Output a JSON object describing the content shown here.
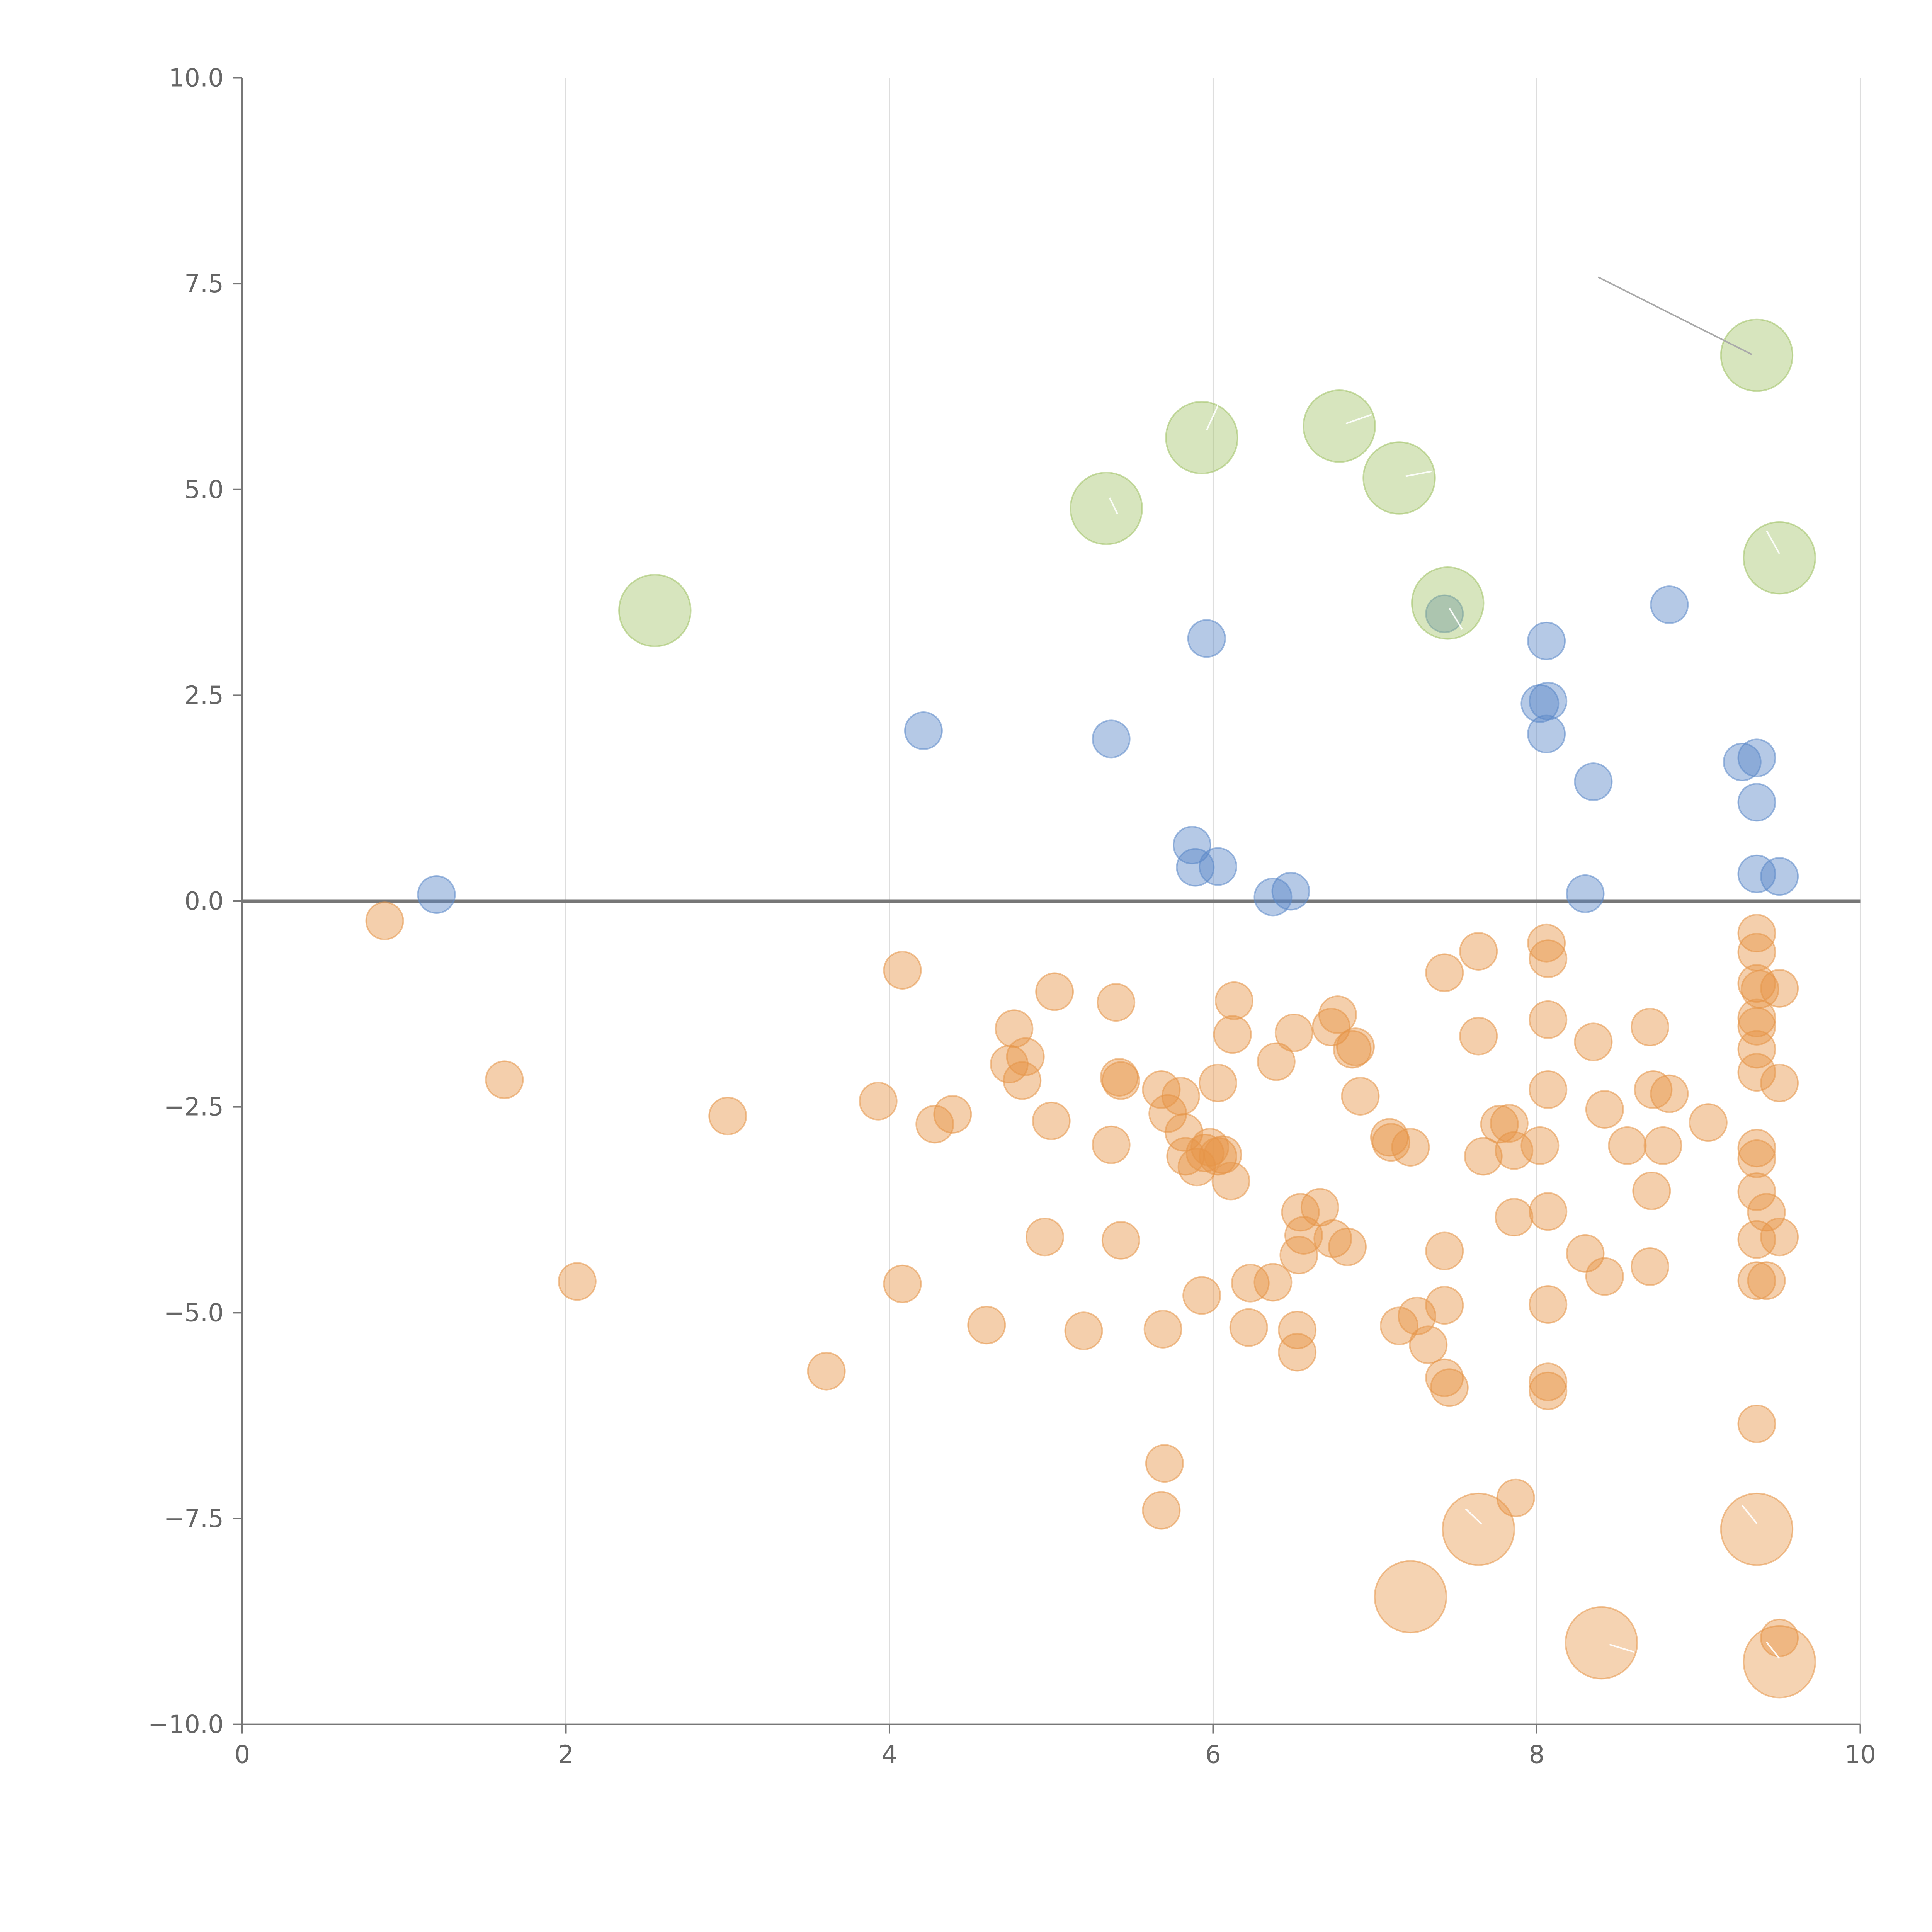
{
  "chart_data": {
    "type": "scatter",
    "title": "",
    "xlabel": "",
    "ylabel": "",
    "xlim": [
      0,
      10
    ],
    "ylim": [
      -10,
      10
    ],
    "x_ticks": [
      "0",
      "2",
      "4",
      "6",
      "8",
      "10"
    ],
    "y_ticks": [
      "10.0",
      "7.5",
      "5.0",
      "2.5",
      "0.0",
      "−2.5",
      "−5.0",
      "−7.5",
      "−10.0"
    ],
    "grid": {
      "vertical": true,
      "horizontal": false
    },
    "zero_line": true,
    "colors": {
      "positive": "#5b88c8",
      "negative": "#e69548",
      "highlight": "#9fc163",
      "highlight_negative": "#e69548",
      "grid": "#dddddd",
      "axis": "#777777",
      "tick_text": "#666666",
      "annotation_line": "#aaaaaa",
      "annotation_line_on_point": "#ffffff"
    },
    "series": [
      {
        "role": "positive",
        "size": "small",
        "points": [
          [
            1.2,
            0.08
          ],
          [
            4.21,
            2.07
          ],
          [
            5.37,
            1.97
          ],
          [
            5.96,
            3.19
          ],
          [
            5.87,
            0.68
          ],
          [
            5.89,
            0.41
          ],
          [
            6.03,
            0.42
          ],
          [
            6.37,
            0.05
          ],
          [
            6.48,
            0.12
          ],
          [
            7.43,
            3.49
          ],
          [
            8.06,
            3.16
          ],
          [
            8.02,
            2.4
          ],
          [
            8.07,
            2.43
          ],
          [
            8.06,
            2.03
          ],
          [
            8.35,
            1.45
          ],
          [
            8.3,
            0.09
          ],
          [
            8.82,
            3.6
          ],
          [
            9.27,
            1.69
          ],
          [
            9.36,
            1.74
          ],
          [
            9.36,
            1.2
          ],
          [
            9.36,
            0.33
          ],
          [
            9.5,
            0.3
          ]
        ]
      },
      {
        "role": "negative",
        "size": "small",
        "points": [
          [
            0.88,
            -0.24
          ],
          [
            1.62,
            -2.17
          ],
          [
            2.07,
            -4.62
          ],
          [
            3.0,
            -2.61
          ],
          [
            3.61,
            -5.71
          ],
          [
            3.93,
            -2.43
          ],
          [
            4.08,
            -0.84
          ],
          [
            4.08,
            -4.65
          ],
          [
            4.28,
            -2.71
          ],
          [
            4.39,
            -2.59
          ],
          [
            4.6,
            -5.15
          ],
          [
            4.77,
            -1.55
          ],
          [
            4.74,
            -1.98
          ],
          [
            4.84,
            -1.89
          ],
          [
            4.82,
            -2.18
          ],
          [
            4.96,
            -4.08
          ],
          [
            5.02,
            -1.1
          ],
          [
            5.0,
            -2.67
          ],
          [
            5.2,
            -5.22
          ],
          [
            5.4,
            -1.23
          ],
          [
            5.42,
            -2.14
          ],
          [
            5.43,
            -2.18
          ],
          [
            5.37,
            -2.96
          ],
          [
            5.43,
            -4.12
          ],
          [
            5.68,
            -2.29
          ],
          [
            5.69,
            -5.2
          ],
          [
            5.7,
            -6.83
          ],
          [
            5.68,
            -7.4
          ],
          [
            5.72,
            -2.58
          ],
          [
            5.8,
            -2.37
          ],
          [
            5.82,
            -2.81
          ],
          [
            5.83,
            -3.1
          ],
          [
            5.9,
            -3.23
          ],
          [
            5.93,
            -4.79
          ],
          [
            5.95,
            -3.06
          ],
          [
            5.98,
            -2.99
          ],
          [
            6.03,
            -3.1
          ],
          [
            6.06,
            -3.08
          ],
          [
            6.03,
            -2.21
          ],
          [
            6.13,
            -1.21
          ],
          [
            6.12,
            -1.62
          ],
          [
            6.11,
            -3.4
          ],
          [
            6.23,
            -4.64
          ],
          [
            6.22,
            -5.18
          ],
          [
            6.37,
            -4.63
          ],
          [
            6.39,
            -1.95
          ],
          [
            6.5,
            -1.6
          ],
          [
            6.52,
            -5.21
          ],
          [
            6.52,
            -5.48
          ],
          [
            6.54,
            -3.78
          ],
          [
            6.56,
            -4.06
          ],
          [
            6.53,
            -4.3
          ],
          [
            6.66,
            -3.72
          ],
          [
            6.73,
            -1.53
          ],
          [
            6.77,
            -1.38
          ],
          [
            6.74,
            -4.1
          ],
          [
            6.83,
            -4.2
          ],
          [
            6.86,
            -1.8
          ],
          [
            6.88,
            -1.77
          ],
          [
            6.91,
            -2.37
          ],
          [
            7.09,
            -2.87
          ],
          [
            7.1,
            -2.93
          ],
          [
            7.22,
            -2.99
          ],
          [
            7.15,
            -5.16
          ],
          [
            7.26,
            -5.04
          ],
          [
            7.33,
            -5.39
          ],
          [
            7.43,
            -0.87
          ],
          [
            7.43,
            -4.25
          ],
          [
            7.43,
            -4.91
          ],
          [
            7.43,
            -5.79
          ],
          [
            7.46,
            -5.91
          ],
          [
            7.64,
            -0.61
          ],
          [
            7.64,
            -1.64
          ],
          [
            7.67,
            -3.1
          ],
          [
            7.87,
            -7.25
          ],
          [
            7.77,
            -2.71
          ],
          [
            7.83,
            -2.7
          ],
          [
            7.86,
            -3.03
          ],
          [
            7.86,
            -3.84
          ],
          [
            8.06,
            -0.51
          ],
          [
            8.07,
            -0.7
          ],
          [
            8.07,
            -1.44
          ],
          [
            8.07,
            -2.29
          ],
          [
            8.02,
            -2.97
          ],
          [
            8.07,
            -3.77
          ],
          [
            8.07,
            -4.9
          ],
          [
            8.07,
            -5.84
          ],
          [
            8.07,
            -5.95
          ],
          [
            8.35,
            -1.71
          ],
          [
            8.3,
            -4.28
          ],
          [
            8.42,
            -2.53
          ],
          [
            8.42,
            -4.56
          ],
          [
            8.56,
            -2.97
          ],
          [
            8.7,
            -1.53
          ],
          [
            8.72,
            -2.29
          ],
          [
            8.71,
            -3.52
          ],
          [
            8.7,
            -4.44
          ],
          [
            8.78,
            -2.97
          ],
          [
            8.82,
            -2.34
          ],
          [
            9.06,
            -2.69
          ],
          [
            9.36,
            -0.39
          ],
          [
            9.36,
            -0.62
          ],
          [
            9.36,
            -1.0
          ],
          [
            9.38,
            -1.07
          ],
          [
            9.36,
            -1.42
          ],
          [
            9.36,
            -1.52
          ],
          [
            9.36,
            -1.8
          ],
          [
            9.36,
            -2.08
          ],
          [
            9.36,
            -3.0
          ],
          [
            9.36,
            -3.13
          ],
          [
            9.36,
            -3.53
          ],
          [
            9.42,
            -3.78
          ],
          [
            9.36,
            -4.11
          ],
          [
            9.36,
            -4.61
          ],
          [
            9.42,
            -4.61
          ],
          [
            9.36,
            -6.35
          ],
          [
            9.5,
            -1.06
          ],
          [
            9.5,
            -2.21
          ],
          [
            9.5,
            -4.08
          ],
          [
            9.5,
            -8.95
          ]
        ]
      },
      {
        "role": "highlight",
        "size": "large",
        "points": [
          [
            2.55,
            3.53
          ],
          [
            5.34,
            4.77
          ],
          [
            5.93,
            5.63
          ],
          [
            6.78,
            5.77
          ],
          [
            7.15,
            5.14
          ],
          [
            7.45,
            3.62
          ],
          [
            9.36,
            6.63
          ],
          [
            9.5,
            4.17
          ]
        ]
      },
      {
        "role": "highlight_negative",
        "size": "large",
        "points": [
          [
            7.22,
            -8.45
          ],
          [
            7.64,
            -7.63
          ],
          [
            8.4,
            -9.01
          ],
          [
            9.36,
            -7.63
          ],
          [
            9.5,
            -9.24
          ]
        ]
      }
    ],
    "annotation_lines": [
      {
        "from": [
          8.38,
          7.58
        ],
        "to": [
          9.33,
          6.64
        ],
        "on_point": false
      },
      {
        "from": [
          5.96,
          5.72
        ],
        "to": [
          6.03,
          6.02
        ],
        "on_point": true
      },
      {
        "from": [
          6.82,
          5.8
        ],
        "to": [
          6.98,
          5.91
        ],
        "on_point": true
      },
      {
        "from": [
          7.19,
          5.16
        ],
        "to": [
          7.35,
          5.22
        ],
        "on_point": true
      },
      {
        "from": [
          5.36,
          4.9
        ],
        "to": [
          5.41,
          4.7
        ],
        "on_point": true
      },
      {
        "from": [
          7.46,
          3.56
        ],
        "to": [
          7.54,
          3.3
        ],
        "on_point": true
      },
      {
        "from": [
          9.42,
          4.5
        ],
        "to": [
          9.5,
          4.22
        ],
        "on_point": true
      },
      {
        "from": [
          7.56,
          -7.38
        ],
        "to": [
          7.66,
          -7.57
        ],
        "on_point": true
      },
      {
        "from": [
          9.27,
          -7.34
        ],
        "to": [
          9.36,
          -7.56
        ],
        "on_point": true
      },
      {
        "from": [
          8.45,
          -9.03
        ],
        "to": [
          8.6,
          -9.12
        ],
        "on_point": true
      },
      {
        "from": [
          9.42,
          -9.0
        ],
        "to": [
          9.5,
          -9.2
        ],
        "on_point": true
      }
    ]
  }
}
